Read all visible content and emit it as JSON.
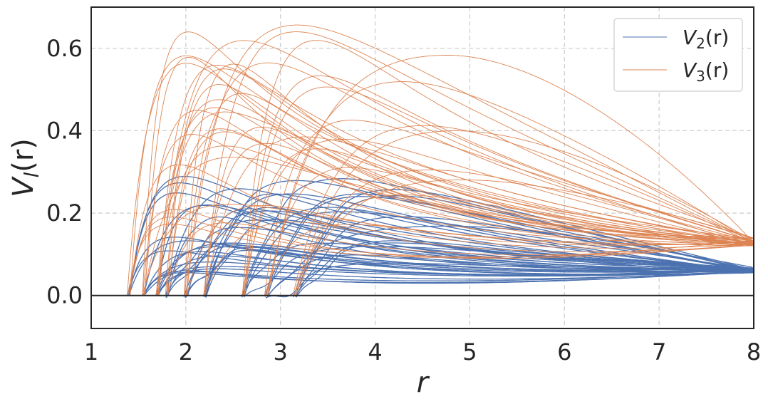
{
  "chart_data": {
    "type": "line",
    "xlabel": "r",
    "ylabel_text": "V",
    "ylabel_sub": "l",
    "ylabel_suffix": "(r)",
    "xlim": [
      1,
      8
    ],
    "ylim": [
      -0.08,
      0.7
    ],
    "xticks": [
      1,
      2,
      3,
      4,
      5,
      6,
      7,
      8
    ],
    "yticks": [
      0.0,
      0.2,
      0.4,
      0.6
    ],
    "ytick_labels": [
      "0.0",
      "0.2",
      "0.4",
      "0.6"
    ],
    "grid": true,
    "zero_line": true,
    "legend_position": "top-right",
    "series": [
      {
        "name_main": "V",
        "name_sub": "2",
        "name_suffix": "(r)",
        "color": "#4c72b0",
        "family_params": {
          "count": 48,
          "r0_range": [
            1.4,
            3.15
          ],
          "peak_range": [
            0.05,
            0.29
          ],
          "value_at_8": [
            0.055,
            0.068
          ],
          "min_dip": -0.04
        }
      },
      {
        "name_main": "V",
        "name_sub": "3",
        "name_suffix": "(r)",
        "color": "#dd8452",
        "family_params": {
          "count": 48,
          "r0_range": [
            1.4,
            3.15
          ],
          "peak_range": [
            0.17,
            0.66
          ],
          "value_at_8": [
            0.12,
            0.14
          ],
          "min_dip": 0.0
        }
      }
    ]
  }
}
